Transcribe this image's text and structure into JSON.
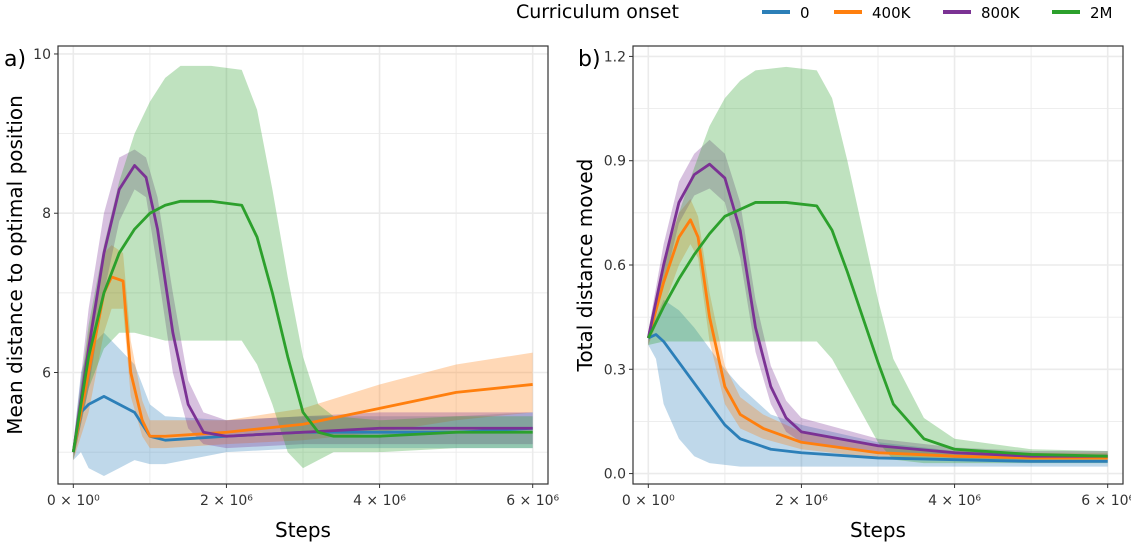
{
  "legend": {
    "title": "Curriculum onset",
    "entries": [
      {
        "label": "0",
        "color": "#2c7fb8"
      },
      {
        "label": "400K",
        "color": "#ff7f0e"
      },
      {
        "label": "800K",
        "color": "#7b3294"
      },
      {
        "label": "2M",
        "color": "#2ca02c"
      }
    ]
  },
  "chart_data": [
    {
      "type": "line",
      "panel_tag": "a)",
      "xlabel": "Steps",
      "ylabel": "Mean distance to optimal position",
      "xlim": [
        -200000,
        6200000
      ],
      "ylim": [
        4.6,
        10.1
      ],
      "xticks": [
        {
          "value": 0,
          "label": "0 × 10⁰"
        },
        {
          "value": 2000000,
          "label": "2 × 10⁶"
        },
        {
          "value": 4000000,
          "label": "4 × 10⁶"
        },
        {
          "value": 6000000,
          "label": "6 × 10⁶"
        }
      ],
      "yticks": [
        {
          "value": 6,
          "label": "6"
        },
        {
          "value": 8,
          "label": "8"
        },
        {
          "value": 10,
          "label": "10"
        }
      ],
      "grid": true,
      "series": [
        {
          "name": "0",
          "color": "#2c7fb8",
          "x": [
            0,
            100000,
            200000,
            400000,
            600000,
            800000,
            1000000,
            1200000,
            2000000,
            3000000,
            4000000,
            5000000,
            6000000
          ],
          "y": [
            5.0,
            5.5,
            5.6,
            5.7,
            5.6,
            5.5,
            5.2,
            5.15,
            5.2,
            5.25,
            5.25,
            5.25,
            5.3
          ],
          "upper": [
            5.1,
            6.0,
            6.3,
            6.5,
            6.3,
            6.1,
            5.6,
            5.45,
            5.4,
            5.45,
            5.45,
            5.45,
            5.5
          ],
          "lower": [
            4.9,
            5.0,
            4.8,
            4.7,
            4.8,
            4.9,
            4.85,
            4.85,
            5.0,
            5.05,
            5.05,
            5.05,
            5.05
          ]
        },
        {
          "name": "400K",
          "color": "#ff7f0e",
          "x": [
            0,
            200000,
            400000,
            500000,
            650000,
            750000,
            900000,
            1000000,
            1200000,
            2000000,
            3000000,
            4000000,
            5000000,
            6000000
          ],
          "y": [
            5.0,
            6.0,
            7.0,
            7.2,
            7.15,
            6.0,
            5.4,
            5.2,
            5.2,
            5.25,
            5.35,
            5.55,
            5.75,
            5.85
          ],
          "upper": [
            5.1,
            6.5,
            7.5,
            7.6,
            7.5,
            6.4,
            5.65,
            5.4,
            5.4,
            5.4,
            5.55,
            5.85,
            6.1,
            6.25
          ],
          "lower": [
            4.9,
            5.5,
            6.5,
            6.8,
            6.8,
            5.7,
            5.2,
            5.05,
            5.05,
            5.1,
            5.15,
            5.25,
            5.4,
            5.5
          ]
        },
        {
          "name": "800K",
          "color": "#7b3294",
          "x": [
            0,
            200000,
            400000,
            600000,
            800000,
            950000,
            1100000,
            1300000,
            1500000,
            1700000,
            2000000,
            3000000,
            4000000,
            5000000,
            6000000
          ],
          "y": [
            5.0,
            6.3,
            7.5,
            8.3,
            8.6,
            8.45,
            7.8,
            6.5,
            5.6,
            5.25,
            5.2,
            5.25,
            5.3,
            5.3,
            5.3
          ],
          "upper": [
            5.1,
            6.8,
            8.0,
            8.7,
            8.8,
            8.7,
            8.2,
            7.0,
            5.9,
            5.5,
            5.4,
            5.45,
            5.5,
            5.5,
            5.5
          ],
          "lower": [
            4.9,
            5.8,
            7.0,
            7.9,
            8.3,
            8.2,
            7.3,
            6.0,
            5.3,
            5.1,
            5.05,
            5.1,
            5.1,
            5.1,
            5.1
          ]
        },
        {
          "name": "2M",
          "color": "#2ca02c",
          "x": [
            0,
            200000,
            400000,
            600000,
            800000,
            1000000,
            1200000,
            1400000,
            1800000,
            2200000,
            2400000,
            2600000,
            2800000,
            3000000,
            3200000,
            3400000,
            4000000,
            5000000,
            6000000
          ],
          "y": [
            5.0,
            6.2,
            7.0,
            7.5,
            7.8,
            8.0,
            8.1,
            8.15,
            8.15,
            8.1,
            7.7,
            7.0,
            6.2,
            5.5,
            5.25,
            5.2,
            5.2,
            5.25,
            5.25
          ],
          "upper": [
            5.1,
            6.6,
            7.6,
            8.4,
            9.0,
            9.4,
            9.7,
            9.85,
            9.85,
            9.8,
            9.3,
            8.3,
            7.2,
            6.2,
            5.6,
            5.45,
            5.4,
            5.45,
            5.45
          ],
          "lower": [
            4.9,
            5.8,
            6.3,
            6.5,
            6.5,
            6.45,
            6.4,
            6.4,
            6.4,
            6.4,
            6.1,
            5.6,
            5.0,
            4.8,
            4.9,
            5.0,
            5.0,
            5.05,
            5.05
          ]
        }
      ]
    },
    {
      "type": "line",
      "panel_tag": "b)",
      "xlabel": "Steps",
      "ylabel": "Total distance moved",
      "xlim": [
        -200000,
        6200000
      ],
      "ylim": [
        -0.03,
        1.23
      ],
      "xticks": [
        {
          "value": 0,
          "label": "0 × 10⁰"
        },
        {
          "value": 2000000,
          "label": "2 × 10⁶"
        },
        {
          "value": 4000000,
          "label": "4 × 10⁶"
        },
        {
          "value": 6000000,
          "label": "6 × 10⁶"
        }
      ],
      "yticks": [
        {
          "value": 0.0,
          "label": "0.0"
        },
        {
          "value": 0.3,
          "label": "0.3"
        },
        {
          "value": 0.6,
          "label": "0.6"
        },
        {
          "value": 0.9,
          "label": "0.9"
        },
        {
          "value": 1.2,
          "label": "1.2"
        }
      ],
      "grid": true,
      "series": [
        {
          "name": "0",
          "color": "#2c7fb8",
          "x": [
            0,
            100000,
            200000,
            400000,
            600000,
            800000,
            1000000,
            1200000,
            1600000,
            2000000,
            3000000,
            4000000,
            5000000,
            6000000
          ],
          "y": [
            0.39,
            0.4,
            0.38,
            0.32,
            0.26,
            0.2,
            0.14,
            0.1,
            0.07,
            0.06,
            0.045,
            0.04,
            0.035,
            0.035
          ],
          "upper": [
            0.41,
            0.45,
            0.5,
            0.47,
            0.42,
            0.36,
            0.3,
            0.25,
            0.17,
            0.14,
            0.09,
            0.065,
            0.055,
            0.05
          ],
          "lower": [
            0.37,
            0.33,
            0.2,
            0.1,
            0.05,
            0.03,
            0.025,
            0.02,
            0.02,
            0.02,
            0.02,
            0.02,
            0.02,
            0.02
          ]
        },
        {
          "name": "400K",
          "color": "#ff7f0e",
          "x": [
            0,
            200000,
            400000,
            550000,
            650000,
            800000,
            1000000,
            1200000,
            1500000,
            2000000,
            3000000,
            4000000,
            5000000,
            6000000
          ],
          "y": [
            0.39,
            0.55,
            0.68,
            0.73,
            0.68,
            0.45,
            0.25,
            0.17,
            0.13,
            0.09,
            0.06,
            0.05,
            0.045,
            0.045
          ],
          "upper": [
            0.41,
            0.62,
            0.75,
            0.79,
            0.74,
            0.52,
            0.31,
            0.22,
            0.17,
            0.12,
            0.08,
            0.065,
            0.06,
            0.06
          ],
          "lower": [
            0.37,
            0.48,
            0.6,
            0.66,
            0.62,
            0.38,
            0.2,
            0.13,
            0.1,
            0.07,
            0.045,
            0.04,
            0.035,
            0.035
          ]
        },
        {
          "name": "800K",
          "color": "#7b3294",
          "x": [
            0,
            200000,
            400000,
            600000,
            800000,
            1000000,
            1200000,
            1400000,
            1600000,
            1800000,
            2000000,
            3000000,
            4000000,
            5000000,
            6000000
          ],
          "y": [
            0.39,
            0.6,
            0.78,
            0.86,
            0.89,
            0.85,
            0.7,
            0.42,
            0.25,
            0.16,
            0.12,
            0.08,
            0.06,
            0.05,
            0.05
          ],
          "upper": [
            0.41,
            0.66,
            0.84,
            0.92,
            0.96,
            0.92,
            0.78,
            0.5,
            0.31,
            0.21,
            0.16,
            0.1,
            0.075,
            0.065,
            0.065
          ],
          "lower": [
            0.37,
            0.54,
            0.72,
            0.8,
            0.82,
            0.78,
            0.62,
            0.35,
            0.2,
            0.12,
            0.09,
            0.06,
            0.045,
            0.04,
            0.04
          ]
        },
        {
          "name": "2M",
          "color": "#2ca02c",
          "x": [
            0,
            200000,
            400000,
            600000,
            800000,
            1000000,
            1200000,
            1400000,
            1800000,
            2200000,
            2400000,
            2600000,
            2800000,
            3000000,
            3200000,
            3600000,
            4000000,
            5000000,
            6000000
          ],
          "y": [
            0.39,
            0.48,
            0.56,
            0.63,
            0.69,
            0.74,
            0.76,
            0.78,
            0.78,
            0.77,
            0.7,
            0.58,
            0.45,
            0.32,
            0.2,
            0.1,
            0.07,
            0.055,
            0.05
          ],
          "upper": [
            0.41,
            0.6,
            0.75,
            0.88,
            1.0,
            1.08,
            1.13,
            1.16,
            1.17,
            1.16,
            1.08,
            0.9,
            0.7,
            0.5,
            0.33,
            0.16,
            0.1,
            0.07,
            0.065
          ],
          "lower": [
            0.37,
            0.38,
            0.38,
            0.38,
            0.38,
            0.38,
            0.38,
            0.38,
            0.38,
            0.38,
            0.33,
            0.25,
            0.17,
            0.09,
            0.04,
            0.03,
            0.03,
            0.03,
            0.03
          ]
        }
      ]
    }
  ]
}
